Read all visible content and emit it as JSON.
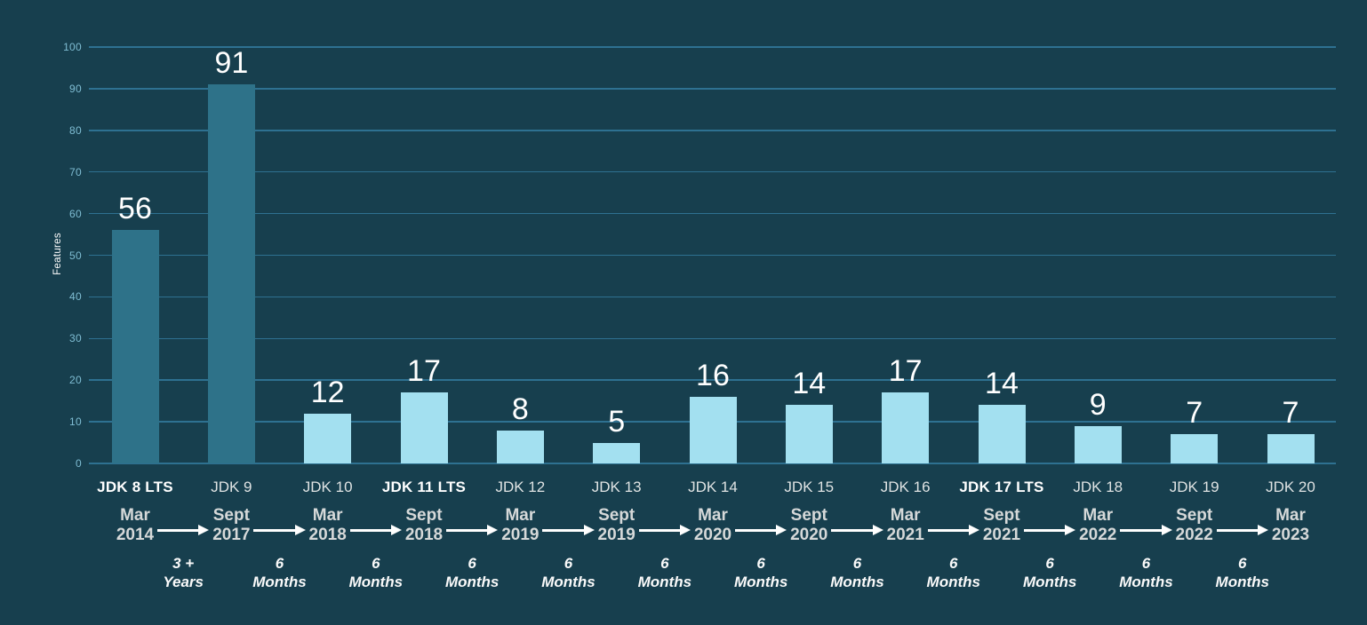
{
  "chart_data": {
    "type": "bar",
    "title": "",
    "xlabel": "",
    "ylabel": "Features",
    "ylim": [
      0,
      100
    ],
    "yticks": [
      0,
      10,
      20,
      30,
      40,
      50,
      60,
      70,
      80,
      90,
      100
    ],
    "grid": true,
    "legend": false,
    "categories": [
      "JDK 8 LTS",
      "JDK 9",
      "JDK 10",
      "JDK 11 LTS",
      "JDK 12",
      "JDK 13",
      "JDK 14",
      "JDK 15",
      "JDK 16",
      "JDK 17 LTS",
      "JDK 18",
      "JDK 19",
      "JDK 20"
    ],
    "values": [
      56,
      91,
      12,
      17,
      8,
      5,
      16,
      14,
      17,
      14,
      9,
      7,
      7
    ],
    "lts_versions": [
      "JDK 8 LTS",
      "JDK 11 LTS",
      "JDK 17 LTS"
    ],
    "dark_bar_categories": [
      "JDK 8 LTS",
      "JDK 9"
    ],
    "timeline": {
      "dates": [
        [
          "Mar",
          "2014"
        ],
        [
          "Sept",
          "2017"
        ],
        [
          "Mar",
          "2018"
        ],
        [
          "Sept",
          "2018"
        ],
        [
          "Mar",
          "2019"
        ],
        [
          "Sept",
          "2019"
        ],
        [
          "Mar",
          "2020"
        ],
        [
          "Sept",
          "2020"
        ],
        [
          "Mar",
          "2021"
        ],
        [
          "Sept",
          "2021"
        ],
        [
          "Mar",
          "2022"
        ],
        [
          "Sept",
          "2022"
        ],
        [
          "Mar",
          "2023"
        ]
      ],
      "intervals": [
        [
          "3 +",
          "Years"
        ],
        [
          "6",
          "Months"
        ],
        [
          "6",
          "Months"
        ],
        [
          "6",
          "Months"
        ],
        [
          "6",
          "Months"
        ],
        [
          "6",
          "Months"
        ],
        [
          "6",
          "Months"
        ],
        [
          "6",
          "Months"
        ],
        [
          "6",
          "Months"
        ],
        [
          "6",
          "Months"
        ],
        [
          "6",
          "Months"
        ],
        [
          "6",
          "Months"
        ]
      ]
    },
    "colors": {
      "background": "#173f4e",
      "bar_dark": "#2e7289",
      "bar_light": "#a3e0f0",
      "gridline": "#2e7191",
      "tick_label": "#7fbdd3",
      "value_label": "#ffffff",
      "category_label": "#dfe3e3",
      "category_label_lts": "#ffffff",
      "date_label": "#d6d9d9",
      "duration_label": "#fafafa",
      "arrow": "#ffffff"
    }
  }
}
